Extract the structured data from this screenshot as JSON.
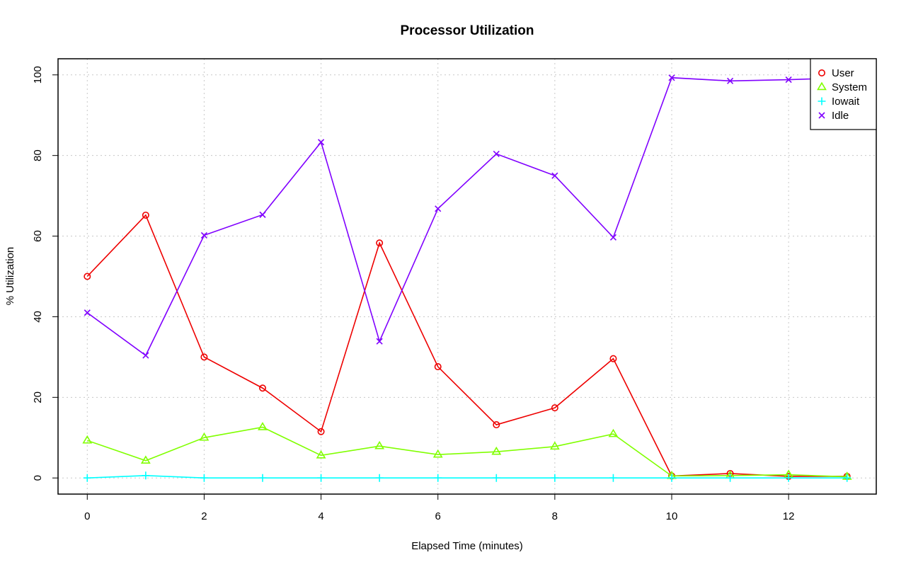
{
  "chart_data": {
    "type": "line",
    "title": "Processor Utilization",
    "xlabel": "Elapsed Time (minutes)",
    "ylabel": "% Utilization",
    "xlim": [
      -0.5,
      13.5
    ],
    "ylim": [
      -4,
      104
    ],
    "x_ticks": [
      0,
      2,
      4,
      6,
      8,
      10,
      12
    ],
    "y_ticks": [
      0,
      20,
      40,
      60,
      80,
      100
    ],
    "grid": true,
    "legend_position": "top-right",
    "x": [
      0,
      1,
      2,
      3,
      4,
      5,
      6,
      7,
      8,
      9,
      10,
      11,
      12,
      13
    ],
    "series": [
      {
        "name": "User",
        "color": "#ee0000",
        "marker": "circle",
        "values": [
          50,
          65.2,
          30,
          22.3,
          11.5,
          58.3,
          27.6,
          13.2,
          17.4,
          29.6,
          0.5,
          1.1,
          0.4,
          0.4
        ]
      },
      {
        "name": "System",
        "color": "#80ff00",
        "marker": "triangle",
        "values": [
          9.3,
          4.3,
          10,
          12.6,
          5.6,
          7.9,
          5.8,
          6.5,
          7.8,
          10.9,
          0.5,
          0.6,
          0.8,
          0.3
        ]
      },
      {
        "name": "Iowait",
        "color": "#00ffff",
        "marker": "plus",
        "values": [
          0,
          0.6,
          0,
          0,
          0,
          0,
          0,
          0,
          0,
          0,
          0,
          0,
          0,
          0
        ]
      },
      {
        "name": "Idle",
        "color": "#8000ff",
        "marker": "cross",
        "values": [
          41,
          30.4,
          60.2,
          65.3,
          83.3,
          33.9,
          66.8,
          80.4,
          75,
          59.7,
          99.3,
          98.5,
          98.8,
          99.3
        ]
      }
    ]
  }
}
